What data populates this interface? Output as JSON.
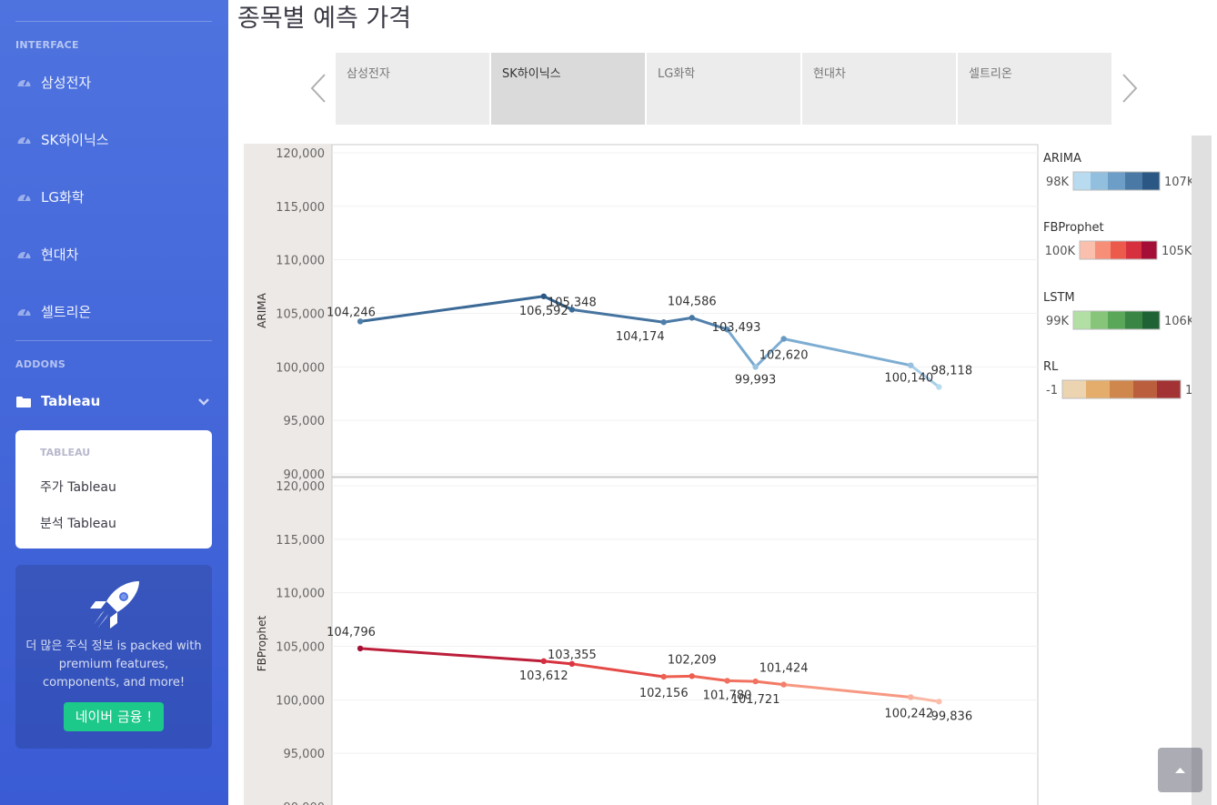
{
  "sidebar": {
    "heading_interface": "INTERFACE",
    "items": [
      {
        "label": "삼성전자",
        "icon": "tachometer-icon"
      },
      {
        "label": "SK하이닉스",
        "icon": "tachometer-icon"
      },
      {
        "label": "LG화학",
        "icon": "tachometer-icon"
      },
      {
        "label": "현대차",
        "icon": "tachometer-icon"
      },
      {
        "label": "셀트리온",
        "icon": "tachometer-icon"
      }
    ],
    "heading_addons": "ADDONS",
    "tableau": {
      "label": "Tableau",
      "icon": "folder-icon"
    },
    "submenu": {
      "heading": "TABLEAU",
      "items": [
        {
          "label": "주가 Tableau"
        },
        {
          "label": "분석 Tableau"
        }
      ]
    },
    "promo": {
      "icon": "rocket-icon",
      "text": "더 많은 주식 정보 is packed with premium features, components, and more!",
      "button": "네이버 금융 !"
    }
  },
  "main": {
    "title": "종목별 예측 가격",
    "tabs": [
      {
        "label": "삼성전자",
        "active": false
      },
      {
        "label": "SK하이닉스",
        "active": true
      },
      {
        "label": "LG화학",
        "active": false
      },
      {
        "label": "현대차",
        "active": false
      },
      {
        "label": "셀트리온",
        "active": false
      }
    ]
  },
  "legend": [
    {
      "title": "ARIMA",
      "min": "98K",
      "max": "107K",
      "colors": [
        "#b9dbf0",
        "#93bfdf",
        "#6c9ec7",
        "#4a79a5",
        "#2a5783"
      ]
    },
    {
      "title": "FBProphet",
      "min": "100K",
      "max": "105K",
      "colors": [
        "#fbc0ad",
        "#f68e78",
        "#ec5a4c",
        "#d6303f",
        "#a50e36"
      ]
    },
    {
      "title": "LSTM",
      "min": "99K",
      "max": "106K",
      "colors": [
        "#b2e0a4",
        "#86c57a",
        "#5aa75a",
        "#398543",
        "#1f6335"
      ]
    },
    {
      "title": "RL",
      "min": "-1",
      "max": "1",
      "colors": [
        "#ecd4b1",
        "#e4ad6b",
        "#d0874e",
        "#bb5e3e",
        "#a23233"
      ]
    }
  ],
  "chart_data": {
    "type": "line",
    "ylim": [
      90000,
      120000
    ],
    "yticks": [
      "120,000",
      "115,000",
      "110,000",
      "105,000",
      "100,000",
      "95,000",
      "90,000"
    ],
    "series": [
      {
        "name": "ARIMA",
        "x": [
          0.04,
          0.3,
          0.34,
          0.47,
          0.51,
          0.56,
          0.6,
          0.64,
          0.82,
          0.86
        ],
        "values": [
          104246,
          106592,
          105348,
          104174,
          104586,
          103493,
          99993,
          102620,
          100140,
          98118
        ],
        "labels": [
          "104,246",
          "106,592",
          "105,348",
          "104,174",
          "104,586",
          "103,493",
          "99,993",
          "102,620",
          "100,140",
          "98,118"
        ]
      },
      {
        "name": "FBProphet",
        "x": [
          0.04,
          0.3,
          0.34,
          0.47,
          0.51,
          0.56,
          0.6,
          0.64,
          0.82,
          0.86
        ],
        "values": [
          104796,
          103612,
          103355,
          102156,
          102209,
          101780,
          101721,
          101424,
          100242,
          99836
        ],
        "labels": [
          "104,796",
          "103,612",
          "103,355",
          "102,156",
          "102,209",
          "101,780",
          "101,721",
          "101,424",
          "100,242",
          "99,836"
        ]
      }
    ]
  }
}
